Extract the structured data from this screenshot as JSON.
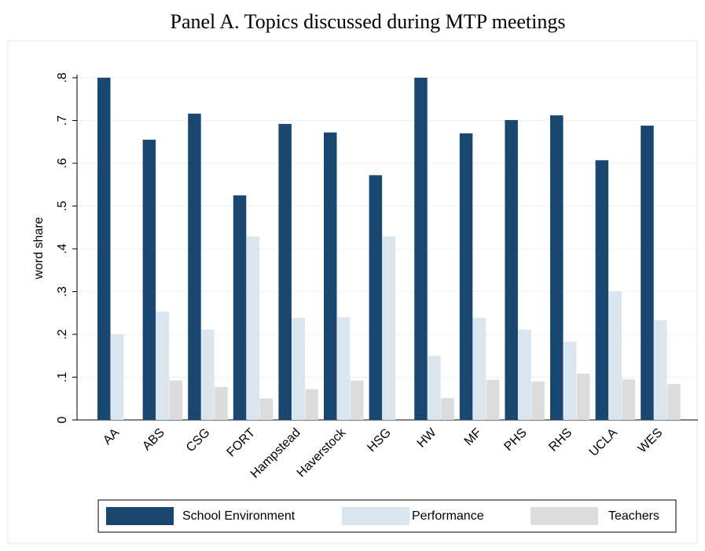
{
  "chart_data": {
    "type": "bar",
    "title": "Panel A. Topics discussed during MTP meetings",
    "y_label": "word share",
    "categories": [
      "AA",
      "ABS",
      "CSG",
      "FORT",
      "Hampstead",
      "Haverstock",
      "HSG",
      "HW",
      "MF",
      "PHS",
      "RHS",
      "UCLA",
      "WES"
    ],
    "series": [
      {
        "name": "School Environment",
        "color": "#1a476f",
        "values": [
          0.8,
          0.655,
          0.716,
          0.525,
          0.692,
          0.672,
          0.572,
          0.8,
          0.67,
          0.701,
          0.712,
          0.607,
          0.688
        ]
      },
      {
        "name": "Performance",
        "color": "#d9e6ef",
        "values": [
          0.2,
          0.253,
          0.211,
          0.429,
          0.239,
          0.24,
          0.429,
          0.15,
          0.239,
          0.211,
          0.183,
          0.301,
          0.233
        ]
      },
      {
        "name": "Teachers",
        "color": "#dcdcdc",
        "values": [
          0,
          0.092,
          0.077,
          0.05,
          0.072,
          0.092,
          0,
          0.051,
          0.094,
          0.09,
          0.108,
          0.095,
          0.084
        ]
      }
    ],
    "ylim": [
      0,
      0.8
    ],
    "yticks": [
      0,
      {
        "value": 0.1,
        "label": ".1"
      },
      {
        "value": 0.2,
        "label": ".2"
      },
      {
        "value": 0.3,
        "label": ".3"
      },
      {
        "value": 0.4,
        "label": ".4"
      },
      {
        "value": 0.5,
        "label": ".5"
      },
      {
        "value": 0.6,
        "label": ".6"
      },
      {
        "value": 0.7,
        "label": ".7"
      },
      {
        "value": 0.8,
        "label": ".8"
      }
    ],
    "grid": true,
    "legend": "bottom"
  }
}
